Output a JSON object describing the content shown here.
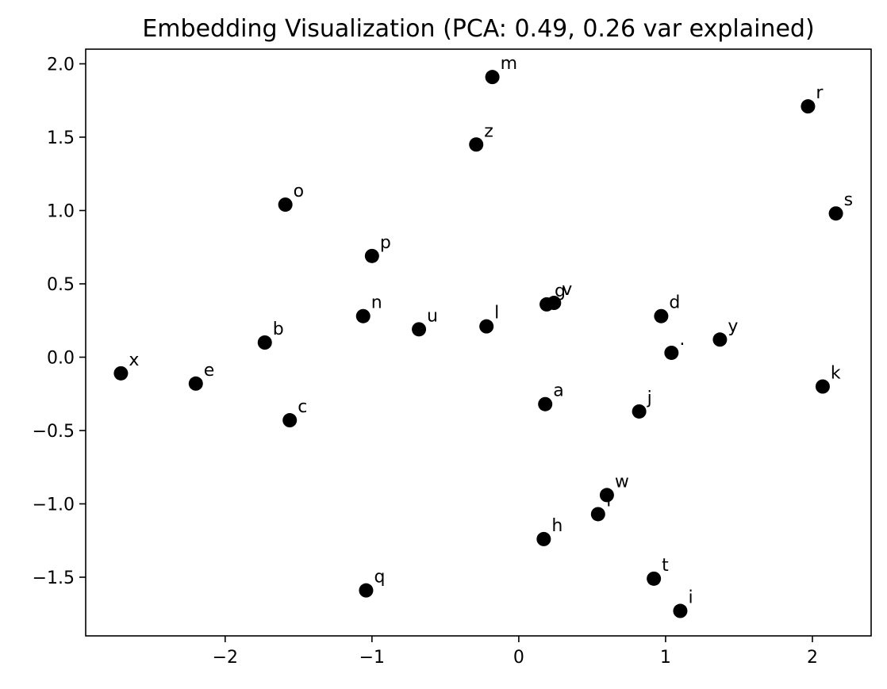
{
  "chart_data": {
    "type": "scatter",
    "title": "Embedding Visualization (PCA: 0.49, 0.26 var explained)",
    "xlabel": "",
    "ylabel": "",
    "xlim": [
      -2.95,
      2.4
    ],
    "ylim": [
      -1.9,
      2.1
    ],
    "grid": false,
    "marker_color": "#000000",
    "x_ticks": [
      {
        "value": -2,
        "label": "−2"
      },
      {
        "value": -1,
        "label": "−1"
      },
      {
        "value": 0,
        "label": "0"
      },
      {
        "value": 1,
        "label": "1"
      },
      {
        "value": 2,
        "label": "2"
      }
    ],
    "y_ticks": [
      {
        "value": -1.5,
        "label": "−1.5"
      },
      {
        "value": -1.0,
        "label": "−1.0"
      },
      {
        "value": -0.5,
        "label": "−0.5"
      },
      {
        "value": 0.0,
        "label": "0.0"
      },
      {
        "value": 0.5,
        "label": "0.5"
      },
      {
        "value": 1.0,
        "label": "1.0"
      },
      {
        "value": 1.5,
        "label": "1.5"
      },
      {
        "value": 2.0,
        "label": "2.0"
      }
    ],
    "points": [
      {
        "label": "m",
        "x": -0.18,
        "y": 1.91
      },
      {
        "label": "r",
        "x": 1.97,
        "y": 1.71
      },
      {
        "label": "z",
        "x": -0.29,
        "y": 1.45
      },
      {
        "label": "o",
        "x": -1.59,
        "y": 1.04
      },
      {
        "label": "s",
        "x": 2.16,
        "y": 0.98
      },
      {
        "label": "p",
        "x": -1.0,
        "y": 0.69
      },
      {
        "label": "g",
        "x": 0.19,
        "y": 0.36
      },
      {
        "label": "v",
        "x": 0.24,
        "y": 0.37
      },
      {
        "label": "n",
        "x": -1.06,
        "y": 0.28
      },
      {
        "label": "d",
        "x": 0.97,
        "y": 0.28
      },
      {
        "label": "u",
        "x": -0.68,
        "y": 0.19
      },
      {
        "label": "l",
        "x": -0.22,
        "y": 0.21
      },
      {
        "label": "y",
        "x": 1.37,
        "y": 0.12
      },
      {
        "label": "b",
        "x": -1.73,
        "y": 0.1
      },
      {
        "label": ".",
        "x": 1.04,
        "y": 0.03
      },
      {
        "label": "x",
        "x": -2.71,
        "y": -0.11
      },
      {
        "label": "e",
        "x": -2.2,
        "y": -0.18
      },
      {
        "label": "k",
        "x": 2.07,
        "y": -0.2
      },
      {
        "label": "a",
        "x": 0.18,
        "y": -0.32
      },
      {
        "label": "j",
        "x": 0.82,
        "y": -0.37
      },
      {
        "label": "c",
        "x": -1.56,
        "y": -0.43
      },
      {
        "label": "w",
        "x": 0.6,
        "y": -0.94
      },
      {
        "label": "f",
        "x": 0.54,
        "y": -1.07
      },
      {
        "label": "h",
        "x": 0.17,
        "y": -1.24
      },
      {
        "label": "t",
        "x": 0.92,
        "y": -1.51
      },
      {
        "label": "q",
        "x": -1.04,
        "y": -1.59
      },
      {
        "label": "i",
        "x": 1.1,
        "y": -1.73
      }
    ]
  }
}
